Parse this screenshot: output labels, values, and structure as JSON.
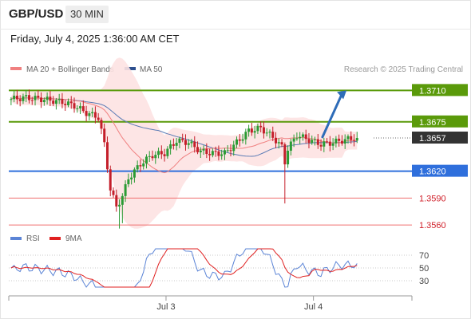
{
  "header": {
    "symbol": "GBP/USD",
    "timeframe": "30 MIN"
  },
  "datetime": "Friday, July 4, 2025 1:36:00 AM CET",
  "credit": "Research © 2025 Trading Central",
  "colors": {
    "bull": "#2b9b34",
    "bear": "#c41e2a",
    "ma20": "#f08080",
    "ma50": "#5a7bb5",
    "band_fill": "#fde2e2",
    "resistance": "#5a9a0a",
    "pivot": "#2f6fdc",
    "support": "#f07070",
    "arrow": "#2e6cb8",
    "current": "#333333",
    "rsi": "#5b84d6",
    "rsi_ma": "#e02020"
  },
  "chart_data": [
    {
      "type": "candlestick",
      "title": "",
      "legend": [
        {
          "name": "MA 20 + Bollinger Bands",
          "color": "#f08080"
        },
        {
          "name": "MA 50",
          "color": "#5a7bb5"
        }
      ],
      "legend_position": "top-left",
      "ylim": [
        1.3545,
        1.3745
      ],
      "xlim": [
        0,
        121
      ],
      "x_ticks": [
        {
          "x": 52,
          "label": "Jul 3"
        },
        {
          "x": 101,
          "label": "Jul 4"
        }
      ],
      "last_price": 1.3657,
      "levels": [
        {
          "value": 1.371,
          "label": "1.3710",
          "kind": "resistance"
        },
        {
          "value": 1.3675,
          "label": "1.3675",
          "kind": "resistance"
        },
        {
          "value": 1.362,
          "label": "1.3620",
          "kind": "pivot"
        },
        {
          "value": 1.359,
          "label": "1.3590",
          "kind": "support"
        },
        {
          "value": 1.356,
          "label": "1.3560",
          "kind": "support"
        }
      ],
      "arrow": {
        "from": [
          104,
          1.3658
        ],
        "to": [
          112,
          1.371
        ]
      }
    },
    {
      "type": "line",
      "title": "",
      "legend": [
        {
          "name": "RSI",
          "color": "#5b84d6"
        },
        {
          "name": "9MA",
          "color": "#e02020"
        }
      ],
      "legend_position": "top-left",
      "ylim": [
        20,
        80
      ],
      "y_ticks": [
        70,
        50,
        30
      ],
      "rsi_last": 57
    }
  ]
}
